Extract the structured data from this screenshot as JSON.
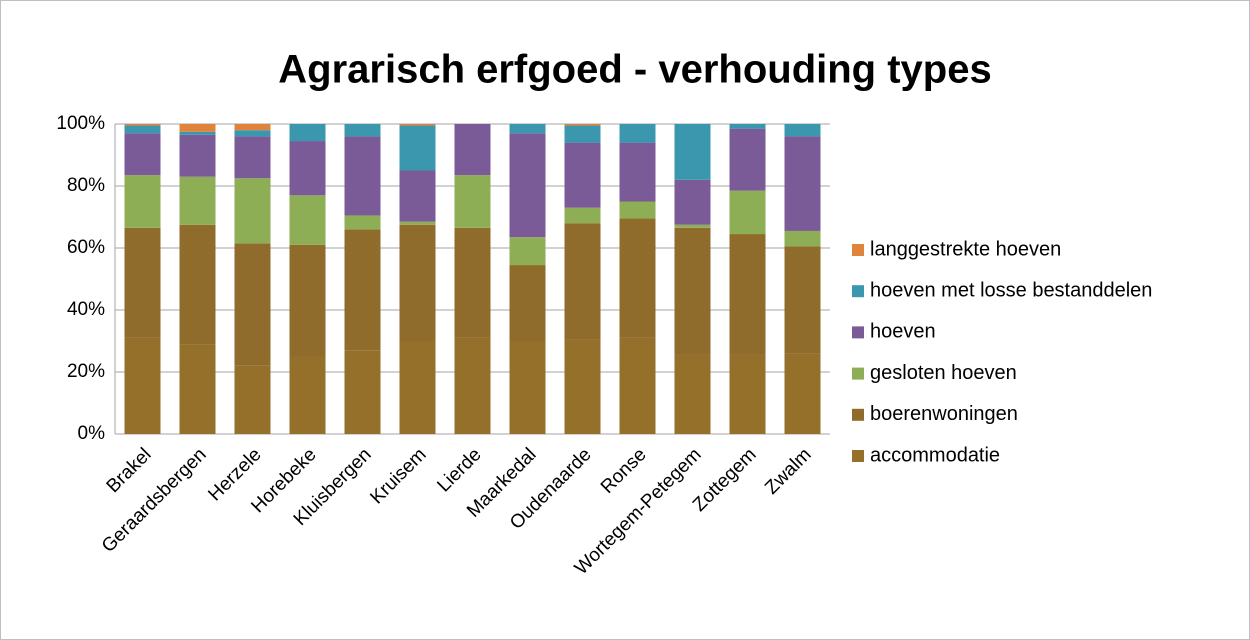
{
  "chart_data": {
    "type": "stacked_bar",
    "title": "Agrarisch erfgoed - verhouding types",
    "categories": [
      "Brakel",
      "Geraardsbergen",
      "Herzele",
      "Horebeke",
      "Kluisbergen",
      "Kruisem",
      "Lierde",
      "Maarkedal",
      "Oudenaarde",
      "Ronse",
      "Wortegem-Petegem",
      "Zottegem",
      "Zwalm"
    ],
    "series": [
      {
        "name": "accommodatie",
        "color": "#94702b",
        "values": [
          31,
          29,
          22,
          25,
          27,
          30,
          31,
          30,
          30.5,
          31,
          25.5,
          25.5,
          26
        ]
      },
      {
        "name": "boerenwoningen",
        "color": "#8f6c2c",
        "values": [
          35.5,
          38.5,
          39.5,
          36,
          39,
          37.5,
          35.5,
          24.5,
          37.5,
          38.5,
          41,
          39,
          34.5
        ]
      },
      {
        "name": "gesloten hoeven",
        "color": "#8eae55",
        "values": [
          17,
          15.5,
          21,
          16,
          4.5,
          1,
          17,
          9,
          5,
          5.5,
          1,
          14,
          5
        ]
      },
      {
        "name": "hoeven",
        "color": "#7a5b98",
        "values": [
          13.5,
          13.5,
          13.5,
          17.5,
          25.5,
          16.5,
          16.5,
          33.5,
          21,
          19,
          14.5,
          20,
          30.5
        ]
      },
      {
        "name": "hoeven met losse bestanddelen",
        "color": "#3b97ae",
        "values": [
          2.5,
          1,
          2,
          5.5,
          4,
          14.5,
          0,
          3,
          5.5,
          6,
          18,
          1.5,
          4
        ]
      },
      {
        "name": "langgestrekte hoeven",
        "color": "#e0843c",
        "values": [
          0.5,
          2.5,
          2,
          0,
          0,
          0.5,
          0,
          0,
          0.5,
          0,
          0,
          0,
          0
        ]
      }
    ],
    "ylim": [
      0,
      100
    ],
    "yticks": [
      {
        "value": 0,
        "label": "0%"
      },
      {
        "value": 20,
        "label": "20%"
      },
      {
        "value": 40,
        "label": "40%"
      },
      {
        "value": 60,
        "label": "60%"
      },
      {
        "value": 80,
        "label": "80%"
      },
      {
        "value": 100,
        "label": "100%"
      }
    ],
    "grid": true,
    "legend": "right"
  }
}
